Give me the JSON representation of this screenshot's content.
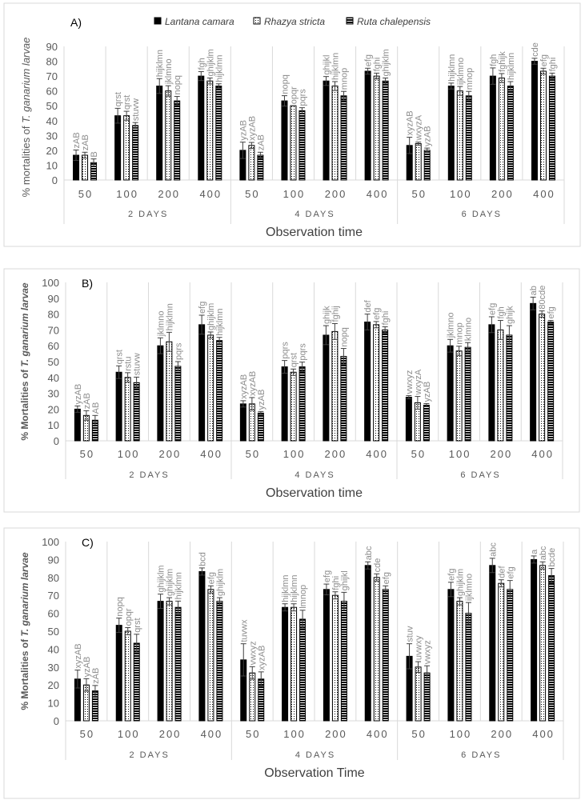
{
  "legend": [
    "Lantana camara",
    "Rhazya stricta",
    "Ruta chalepensis"
  ],
  "colors": {
    "lantana": "#000000",
    "rhazya": "#ffffff",
    "ruta": "#000000",
    "letters": "#8c8c8c",
    "grid": "#d9d9d9"
  },
  "chart_data": [
    {
      "type": "bar",
      "panel_label": "A)",
      "ylabel_prefix": "% mortalities of ",
      "ylabel_italic": "T. ganarium larvae",
      "xlabel": "Observation time",
      "ylim": [
        0,
        90
      ],
      "ytick_step": 10,
      "groups": [
        "2 DAYS",
        "4 DAYS",
        "6 DAYS"
      ],
      "categories": [
        "50",
        "100",
        "200",
        "400",
        "50",
        "100",
        "200",
        "400",
        "50",
        "100",
        "200",
        "400"
      ],
      "series": [
        {
          "name": "Lantana camara",
          "pattern": "solid",
          "values": [
            16.7,
            43.3,
            63.3,
            70,
            20,
            53.3,
            66.7,
            73.3,
            23.3,
            63.3,
            70,
            80
          ],
          "errors": [
            3.5,
            5,
            5,
            3,
            5.5,
            3.5,
            3,
            2,
            5.5,
            2,
            5.5,
            2
          ],
          "letters": [
            "zAB",
            "qrst",
            "hijklmn",
            "fgh",
            "yzAB",
            "nopq",
            "ghijkl",
            "efg",
            "xyzAB",
            "hijklmn",
            "fgh",
            "cde"
          ]
        },
        {
          "name": "Rhazya stricta",
          "pattern": "dotted",
          "values": [
            16.7,
            43.3,
            60,
            66.7,
            23.3,
            50,
            63.3,
            70,
            24.5,
            60,
            68.7,
            73.3
          ],
          "errors": [
            2,
            3,
            3.5,
            2,
            2,
            0,
            3,
            2,
            1,
            3,
            3,
            2
          ],
          "letters": [
            "zAB",
            "qrst",
            "jklmno",
            "ghijklm",
            "xyzAB",
            "opqr",
            "hijklmn",
            "fghi",
            "wxyzA",
            "ijklmno",
            "fghijk",
            "efg"
          ]
        },
        {
          "name": "Ruta chalepensis",
          "pattern": "horizontal-stripes",
          "values": [
            11.7,
            36.7,
            53.3,
            63.3,
            16.7,
            46.7,
            56.7,
            66.7,
            20,
            56.7,
            63.3,
            70
          ],
          "errors": [
            2.5,
            2,
            3,
            1.5,
            2,
            2,
            3,
            2,
            1.5,
            3,
            3,
            2
          ],
          "letters": [
            "B",
            "stuvw",
            "nopq",
            "hijklmn",
            "zAB",
            "pqrs",
            "mnop",
            "ghijklm",
            "yzAB",
            "mnop",
            "hijklmn",
            "fghi"
          ]
        }
      ]
    },
    {
      "type": "bar",
      "panel_label": "B)",
      "ylabel_prefix": "% Mortalities of ",
      "ylabel_italic": "T. ganarium larvae",
      "xlabel": "Observation time",
      "ylim": [
        0,
        100
      ],
      "ytick_step": 10,
      "groups": [
        "2 DAYS",
        "4 DAYS",
        "6 DAYS"
      ],
      "categories": [
        "50",
        "100",
        "200",
        "400",
        "50",
        "100",
        "200",
        "400",
        "50",
        "100",
        "200",
        "400"
      ],
      "series": [
        {
          "name": "Lantana camara",
          "pattern": "solid",
          "values": [
            20,
            43.3,
            60,
            73.3,
            23.3,
            46.7,
            66.7,
            75,
            27.5,
            60,
            73.3,
            86.7
          ],
          "errors": [
            2,
            4,
            5,
            6,
            2,
            4,
            6,
            5,
            1,
            4,
            5,
            4
          ],
          "letters": [
            "yzAB",
            "qrst",
            "jklmno",
            "efg",
            "xyzAB",
            "pqrs",
            "ghijk",
            "def",
            "vwxyz",
            "jklmno",
            "efg",
            "ab"
          ]
        },
        {
          "name": "Rhazya stricta",
          "pattern": "dotted",
          "values": [
            16,
            40,
            62.5,
            66.7,
            23.3,
            43.3,
            69,
            73.3,
            24,
            56.7,
            70,
            80
          ],
          "errors": [
            3,
            3,
            6,
            2,
            4,
            2,
            5,
            2,
            4,
            3,
            6,
            2
          ],
          "letters": [
            "zAB",
            "rstu",
            "hijklmn",
            "ghijklm",
            "xyzAB",
            "qrst",
            "fghij",
            "efg",
            "wxyzA",
            "mnop",
            "fgh",
            "80cde"
          ]
        },
        {
          "name": "Ruta chalepensis",
          "pattern": "horizontal-stripes",
          "values": [
            13,
            36.7,
            47,
            63.3,
            17.5,
            46.7,
            53.3,
            70,
            22.5,
            59,
            66.7,
            75
          ],
          "errors": [
            3,
            3.5,
            3,
            2,
            1,
            3,
            5,
            2,
            1,
            3,
            6,
            1
          ],
          "letters": [
            "AB",
            "stuvw",
            "pqrs",
            "hijklmn",
            "yzAB",
            "pqrs",
            "nopq",
            "fghi",
            "yzAB",
            "klmno",
            "ghijk",
            "efg"
          ]
        }
      ]
    },
    {
      "type": "bar",
      "panel_label": "C)",
      "ylabel_prefix": "% Mortalities of ",
      "ylabel_italic": "T. ganarium larvae",
      "xlabel": "Observation Time",
      "ylim": [
        0,
        100
      ],
      "ytick_step": 10,
      "groups": [
        "2 DAYS",
        "4 DAYS",
        "6 DAYS"
      ],
      "categories": [
        "50",
        "100",
        "200",
        "400",
        "50",
        "100",
        "200",
        "400",
        "50",
        "100",
        "200",
        "400"
      ],
      "series": [
        {
          "name": "Lantana camara",
          "pattern": "solid",
          "values": [
            23.3,
            53.3,
            66.7,
            83.3,
            34,
            63.3,
            73.3,
            86.7,
            36,
            73.3,
            86.7,
            90
          ],
          "errors": [
            5,
            4,
            4,
            2,
            9,
            2,
            3,
            2,
            7,
            4,
            4,
            2
          ],
          "letters": [
            "xyzAB",
            "nopq",
            "ghijklm",
            "bcd",
            "tuvwx",
            "hijklmn",
            "efg",
            "abc",
            "stuv",
            "efg",
            "abc",
            "a"
          ]
        },
        {
          "name": "Rhazya stricta",
          "pattern": "dotted",
          "values": [
            20,
            50,
            66.7,
            73.3,
            26.7,
            63.3,
            70,
            80,
            30,
            66.7,
            76.7,
            86.7
          ],
          "errors": [
            3.5,
            2,
            2,
            2,
            3.5,
            2,
            2,
            2,
            3,
            2,
            2,
            2
          ],
          "letters": [
            "yzAB",
            "opqr",
            "ghijklm",
            "efg",
            "vwxyz",
            "hijklmn",
            "fghi",
            "cde",
            "uvwxy",
            "ghijklm",
            "def",
            "abc"
          ]
        },
        {
          "name": "Ruta chalepensis",
          "pattern": "horizontal-stripes",
          "values": [
            16.7,
            43.3,
            63.3,
            66.7,
            23.3,
            56.7,
            66.7,
            73.3,
            26.7,
            60,
            73.3,
            81
          ],
          "errors": [
            3,
            5,
            3.5,
            2,
            4,
            5,
            5,
            2,
            4,
            6,
            5,
            4
          ],
          "letters": [
            "zAB",
            "qrst",
            "hijklmn",
            "ghijklm",
            "xyzAB",
            "lmnop",
            "ghijkl",
            "efg",
            "vwxyz",
            "ijklmno",
            "efg",
            "bcde"
          ]
        }
      ]
    }
  ]
}
